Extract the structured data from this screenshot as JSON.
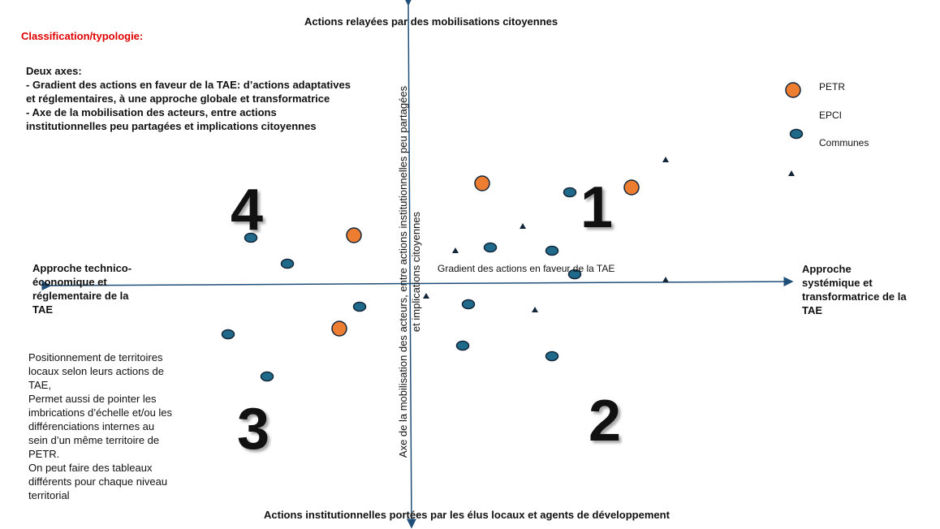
{
  "title": "Classification/typologie:",
  "intro": {
    "heading": "Deux axes:",
    "line1": "- Gradient des actions en faveur de la TAE: d’actions adaptatives et réglementaires, à une approche globale et transformatrice",
    "line2": "- Axe de la mobilisation des acteurs, entre actions institutionnelles peu partagées et implications citoyennes"
  },
  "axes": {
    "top": "Actions relayées par des mobilisations citoyennes",
    "bottom": "Actions institutionnelles portées par les élus locaux et agents de développement",
    "left": "Approche technico-économique et réglementaire de la TAE",
    "right": "Approche systémique et transformatrice de la TAE",
    "vertical_line1": "Axe de la mobilisation des acteurs, entre actions institutionnelles peu partagées",
    "vertical_line2": "et implications citoyennes",
    "horizontal": "Gradient des actions en faveur de la TAE"
  },
  "quadrants": [
    "1",
    "2",
    "3",
    "4"
  ],
  "legend": {
    "petr": "PETR",
    "epci": "EPCI",
    "communes": "Communes"
  },
  "note": {
    "p1": "Positionnement de territoires locaux selon leurs actions de TAE,",
    "p2": "Permet aussi de pointer les imbrications d’échelle et/ou les différenciations internes au sein d’un même territoire de PETR.",
    "p3": "On peut faire des tableaux différents pour chaque niveau territorial"
  },
  "colors": {
    "petr": "#ed7d31",
    "commune": "#1f6a8a",
    "axis": "#1f4e79",
    "title": "#e00000",
    "mark": "#13263a"
  }
}
